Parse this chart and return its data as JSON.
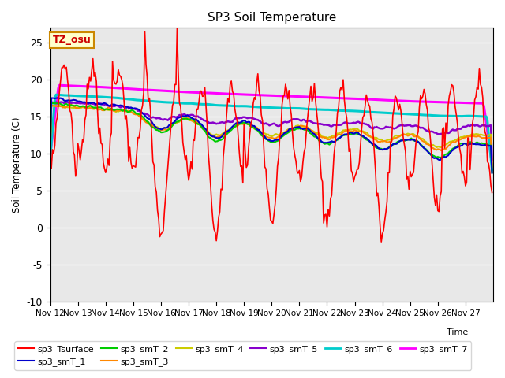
{
  "title": "SP3 Soil Temperature",
  "ylabel": "Soil Temperature (C)",
  "xlabel": "Time",
  "annotation": "TZ_osu",
  "ylim": [
    -10,
    27
  ],
  "xlim": [
    0,
    384
  ],
  "xtick_labels": [
    "Nov 12",
    "Nov 13",
    "Nov 14",
    "Nov 15",
    "Nov 16",
    "Nov 17",
    "Nov 18",
    "Nov 19",
    "Nov 20",
    "Nov 21",
    "Nov 22",
    "Nov 23",
    "Nov 24",
    "Nov 25",
    "Nov 26",
    "Nov 27"
  ],
  "xtick_positions": [
    0,
    24,
    48,
    72,
    96,
    120,
    144,
    168,
    192,
    216,
    240,
    264,
    288,
    312,
    336,
    360
  ],
  "ytick_values": [
    -10,
    -5,
    0,
    5,
    10,
    15,
    20,
    25
  ],
  "series_colors": {
    "sp3_Tsurface": "#ff0000",
    "sp3_smT_1": "#0000cc",
    "sp3_smT_2": "#00cc00",
    "sp3_smT_3": "#ff8800",
    "sp3_smT_4": "#cccc00",
    "sp3_smT_5": "#8800cc",
    "sp3_smT_6": "#00cccc",
    "sp3_smT_7": "#ff00ff"
  },
  "background_color": "#ffffff",
  "plot_bg_color": "#e8e8e8",
  "grid_color": "#ffffff",
  "annotation_bg": "#ffffcc",
  "annotation_border": "#cc8800",
  "linewidths": {
    "sp3_Tsurface": 1.2,
    "sp3_smT_1": 1.5,
    "sp3_smT_2": 1.5,
    "sp3_smT_3": 1.5,
    "sp3_smT_4": 1.5,
    "sp3_smT_5": 1.8,
    "sp3_smT_6": 2.2,
    "sp3_smT_7": 2.2
  }
}
